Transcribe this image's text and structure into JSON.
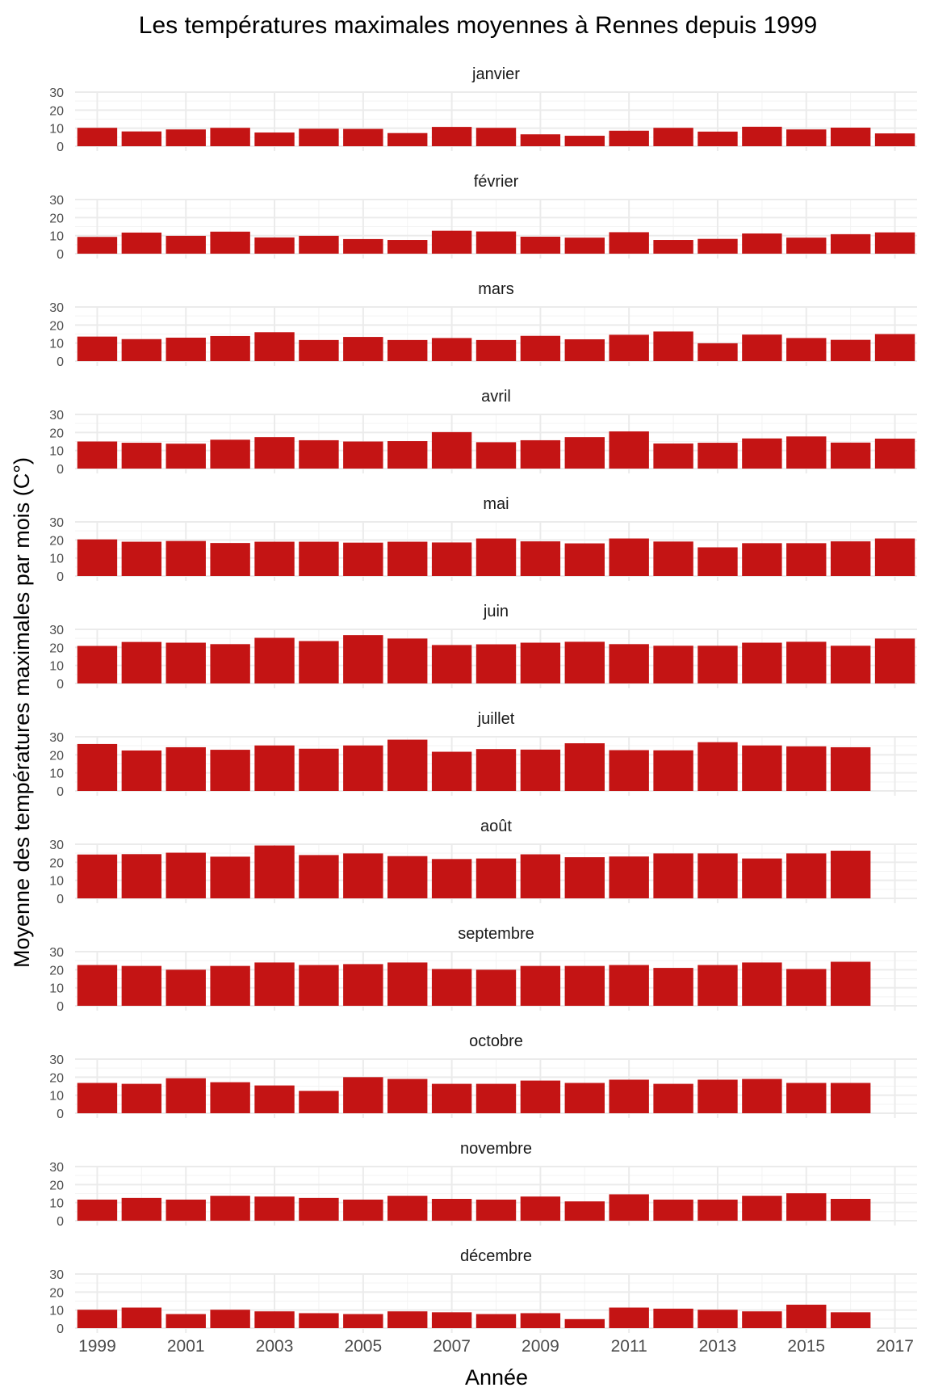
{
  "chart_data": {
    "type": "bar",
    "title": "Les températures maximales moyennes à Rennes depuis 1999",
    "xlabel": "Année",
    "ylabel": "Moyenne des températures maximales par mois (C°)",
    "x": [
      1999,
      2000,
      2001,
      2002,
      2003,
      2004,
      2005,
      2006,
      2007,
      2008,
      2009,
      2010,
      2011,
      2012,
      2013,
      2014,
      2015,
      2016,
      2017
    ],
    "x_ticks": [
      "1999",
      "2001",
      "2003",
      "2005",
      "2007",
      "2009",
      "2011",
      "2013",
      "2015",
      "2017"
    ],
    "y_ticks": [
      "0",
      "10",
      "20",
      "30"
    ],
    "ylim": [
      0,
      30
    ],
    "bar_color": "#c41414",
    "grid": true,
    "panels": [
      {
        "name": "janvier",
        "values": [
          10.2,
          8.2,
          9.3,
          10.2,
          7.6,
          9.7,
          9.6,
          7.3,
          10.7,
          10.2,
          6.6,
          5.8,
          8.6,
          10.2,
          8.1,
          10.8,
          9.3,
          10.3,
          7.1
        ]
      },
      {
        "name": "février",
        "values": [
          9.3,
          11.7,
          9.9,
          12.2,
          9.0,
          9.9,
          8.1,
          7.6,
          12.7,
          12.3,
          9.4,
          8.9,
          11.9,
          7.6,
          8.2,
          11.2,
          8.9,
          10.8,
          11.8
        ]
      },
      {
        "name": "mars",
        "values": [
          13.6,
          12.2,
          13.0,
          13.9,
          16.0,
          11.7,
          13.4,
          11.7,
          12.8,
          11.7,
          14.0,
          12.1,
          14.6,
          16.4,
          9.9,
          14.7,
          12.8,
          11.8,
          15.0
        ]
      },
      {
        "name": "avril",
        "values": [
          15.0,
          14.3,
          13.8,
          16.0,
          17.4,
          15.7,
          15.0,
          15.2,
          20.2,
          14.6,
          15.7,
          17.4,
          20.6,
          13.9,
          14.3,
          16.7,
          17.8,
          14.4,
          16.6
        ]
      },
      {
        "name": "mai",
        "values": [
          20.3,
          19.0,
          19.4,
          18.3,
          19.0,
          19.0,
          18.5,
          19.0,
          18.6,
          20.8,
          19.2,
          18.1,
          20.8,
          19.1,
          15.9,
          18.2,
          18.2,
          19.2,
          20.8
        ]
      },
      {
        "name": "juin",
        "values": [
          20.8,
          23.0,
          22.6,
          21.8,
          25.3,
          23.5,
          26.8,
          24.9,
          21.3,
          21.7,
          22.6,
          23.1,
          21.8,
          20.9,
          20.9,
          22.6,
          23.1,
          20.9,
          24.9
        ]
      },
      {
        "name": "juillet",
        "values": [
          26.0,
          22.4,
          24.2,
          22.8,
          25.2,
          23.4,
          25.2,
          28.4,
          21.7,
          23.2,
          22.9,
          26.4,
          22.6,
          22.5,
          27.0,
          25.2,
          24.7,
          24.2,
          0
        ]
      },
      {
        "name": "août",
        "values": [
          24.3,
          24.5,
          25.3,
          23.1,
          29.3,
          24.0,
          24.9,
          23.4,
          21.8,
          22.1,
          24.4,
          22.8,
          23.2,
          24.9,
          24.9,
          22.1,
          24.9,
          26.4,
          0
        ]
      },
      {
        "name": "septembre",
        "values": [
          22.6,
          22.1,
          20.0,
          22.1,
          24.0,
          22.6,
          23.1,
          24.0,
          20.4,
          20.0,
          22.1,
          22.1,
          22.6,
          21.0,
          22.6,
          24.0,
          20.4,
          24.4,
          0
        ]
      },
      {
        "name": "octobre",
        "values": [
          16.8,
          16.3,
          19.4,
          17.2,
          15.4,
          12.4,
          20.0,
          19.0,
          16.3,
          16.3,
          18.1,
          16.8,
          18.6,
          16.3,
          18.6,
          19.0,
          16.8,
          16.8,
          0
        ]
      },
      {
        "name": "novembre",
        "values": [
          11.7,
          12.6,
          11.7,
          13.8,
          13.4,
          12.6,
          11.7,
          13.8,
          12.1,
          11.7,
          13.4,
          10.7,
          14.6,
          11.7,
          11.7,
          13.8,
          15.2,
          12.1,
          0
        ]
      },
      {
        "name": "décembre",
        "values": [
          10.2,
          11.4,
          7.8,
          10.2,
          9.3,
          8.3,
          7.8,
          9.3,
          8.8,
          7.8,
          8.3,
          5.0,
          11.4,
          10.8,
          10.2,
          9.3,
          13.0,
          8.8,
          0
        ]
      }
    ]
  }
}
